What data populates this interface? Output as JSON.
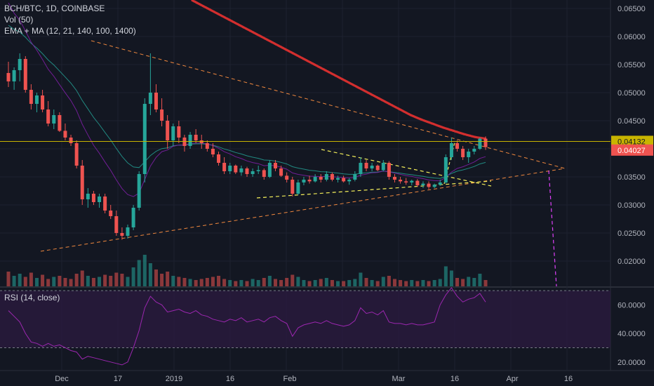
{
  "legend": {
    "symbol": "BCH/BTC, 1D, COINBASE",
    "volume": "Vol (50)",
    "ma": "EMA + MA (12, 21, 140, 100, 1400)",
    "rsi": "RSI (14, close)"
  },
  "colors": {
    "background": "#131722",
    "grid": "#1e2230",
    "up": "#26a69a",
    "down": "#ef5350",
    "ma_red": "#d32f2f",
    "ema_teal": "#26a69a",
    "ema_purple": "#7b1fa2",
    "trend_orange": "#f0883e",
    "triangle_yellow": "#f5f05a",
    "projection_pink": "#e040fb",
    "rsi_line": "#9c27b0",
    "rsi_band": "#2a1a3e",
    "price_line": "#c8b400"
  },
  "price_axis": {
    "ticks": [
      "0.06500",
      "0.06000",
      "0.05500",
      "0.05000",
      "0.04500",
      "0.03500",
      "0.03000",
      "0.02500",
      "0.02000"
    ],
    "current_price": "0.04132",
    "last_close": "0.04027"
  },
  "rsi_axis": {
    "ticks": [
      "60.0000",
      "40.0000",
      "20.0000"
    ]
  },
  "time_axis": {
    "labels": [
      "Dec",
      "17",
      "2019",
      "16",
      "Feb",
      "Mar",
      "16",
      "Apr",
      "16"
    ]
  },
  "chart_data": {
    "type": "candlestick",
    "title": "BCH/BTC, 1D, COINBASE",
    "ylim": [
      0.0155,
      0.0665
    ],
    "rsi_ylim": [
      14,
      72
    ],
    "rsi_levels": [
      70,
      30
    ],
    "ohlc": [
      [
        0.0535,
        0.0555,
        0.051,
        0.052
      ],
      [
        0.052,
        0.0545,
        0.0505,
        0.054
      ],
      [
        0.054,
        0.057,
        0.052,
        0.056
      ],
      [
        0.056,
        0.0565,
        0.05,
        0.0505
      ],
      [
        0.0505,
        0.0515,
        0.047,
        0.048
      ],
      [
        0.048,
        0.05,
        0.0465,
        0.0495
      ],
      [
        0.0495,
        0.0505,
        0.0465,
        0.047
      ],
      [
        0.047,
        0.0485,
        0.044,
        0.0445
      ],
      [
        0.0445,
        0.047,
        0.0435,
        0.046
      ],
      [
        0.046,
        0.0465,
        0.043,
        0.0432
      ],
      [
        0.0432,
        0.0445,
        0.0415,
        0.042
      ],
      [
        0.042,
        0.0425,
        0.0405,
        0.041
      ],
      [
        0.041,
        0.0415,
        0.0365,
        0.037
      ],
      [
        0.037,
        0.038,
        0.03,
        0.031
      ],
      [
        0.031,
        0.033,
        0.0295,
        0.032
      ],
      [
        0.032,
        0.0325,
        0.03,
        0.0305
      ],
      [
        0.0305,
        0.032,
        0.0295,
        0.0315
      ],
      [
        0.0315,
        0.032,
        0.0285,
        0.029
      ],
      [
        0.029,
        0.03,
        0.0275,
        0.028
      ],
      [
        0.028,
        0.029,
        0.0245,
        0.025
      ],
      [
        0.025,
        0.026,
        0.0238,
        0.0245
      ],
      [
        0.0245,
        0.0265,
        0.024,
        0.026
      ],
      [
        0.026,
        0.03,
        0.0255,
        0.0295
      ],
      [
        0.0295,
        0.036,
        0.029,
        0.0355
      ],
      [
        0.0355,
        0.049,
        0.034,
        0.048
      ],
      [
        0.048,
        0.057,
        0.046,
        0.05
      ],
      [
        0.05,
        0.0515,
        0.0465,
        0.047
      ],
      [
        0.047,
        0.049,
        0.044,
        0.045
      ],
      [
        0.045,
        0.046,
        0.04,
        0.0415
      ],
      [
        0.0415,
        0.0445,
        0.0405,
        0.044
      ],
      [
        0.044,
        0.045,
        0.041,
        0.042
      ],
      [
        0.042,
        0.0425,
        0.0395,
        0.0405
      ],
      [
        0.0405,
        0.043,
        0.04,
        0.0425
      ],
      [
        0.0425,
        0.0435,
        0.041,
        0.0415
      ],
      [
        0.0415,
        0.0425,
        0.04,
        0.041
      ],
      [
        0.041,
        0.0415,
        0.0395,
        0.04
      ],
      [
        0.04,
        0.041,
        0.0385,
        0.039
      ],
      [
        0.039,
        0.0395,
        0.037,
        0.0375
      ],
      [
        0.0375,
        0.0385,
        0.0355,
        0.036
      ],
      [
        0.036,
        0.0375,
        0.0355,
        0.037
      ],
      [
        0.037,
        0.0372,
        0.0355,
        0.0358
      ],
      [
        0.0358,
        0.037,
        0.0352,
        0.0365
      ],
      [
        0.0365,
        0.0368,
        0.035,
        0.0355
      ],
      [
        0.0355,
        0.0365,
        0.035,
        0.036
      ],
      [
        0.036,
        0.037,
        0.0355,
        0.0362
      ],
      [
        0.0362,
        0.0365,
        0.0345,
        0.035
      ],
      [
        0.035,
        0.038,
        0.0348,
        0.0375
      ],
      [
        0.0375,
        0.038,
        0.036,
        0.0365
      ],
      [
        0.0365,
        0.037,
        0.035,
        0.0352
      ],
      [
        0.0352,
        0.0358,
        0.034,
        0.0345
      ],
      [
        0.0345,
        0.035,
        0.0315,
        0.032
      ],
      [
        0.032,
        0.0345,
        0.0318,
        0.034
      ],
      [
        0.034,
        0.035,
        0.0335,
        0.0345
      ],
      [
        0.0345,
        0.0352,
        0.0338,
        0.0342
      ],
      [
        0.0342,
        0.0355,
        0.034,
        0.035
      ],
      [
        0.035,
        0.0355,
        0.034,
        0.0345
      ],
      [
        0.0345,
        0.036,
        0.0342,
        0.0355
      ],
      [
        0.0355,
        0.0358,
        0.0342,
        0.0345
      ],
      [
        0.0345,
        0.0352,
        0.034,
        0.0348
      ],
      [
        0.0348,
        0.0352,
        0.034,
        0.0342
      ],
      [
        0.0342,
        0.0348,
        0.0336,
        0.0345
      ],
      [
        0.0345,
        0.036,
        0.0342,
        0.0355
      ],
      [
        0.0355,
        0.0385,
        0.035,
        0.0375
      ],
      [
        0.0375,
        0.038,
        0.036,
        0.0365
      ],
      [
        0.0365,
        0.0375,
        0.036,
        0.037
      ],
      [
        0.037,
        0.0372,
        0.036,
        0.0362
      ],
      [
        0.0362,
        0.038,
        0.036,
        0.0375
      ],
      [
        0.0375,
        0.0378,
        0.0345,
        0.035
      ],
      [
        0.035,
        0.0355,
        0.034,
        0.0345
      ],
      [
        0.0345,
        0.035,
        0.0338,
        0.0342
      ],
      [
        0.0342,
        0.0348,
        0.0336,
        0.034
      ],
      [
        0.034,
        0.0345,
        0.0335,
        0.0343
      ],
      [
        0.0343,
        0.0346,
        0.0332,
        0.0335
      ],
      [
        0.0335,
        0.0342,
        0.033,
        0.0338
      ],
      [
        0.0338,
        0.0342,
        0.0328,
        0.0332
      ],
      [
        0.0332,
        0.0338,
        0.033,
        0.0336
      ],
      [
        0.0336,
        0.0345,
        0.0334,
        0.034
      ],
      [
        0.034,
        0.039,
        0.0338,
        0.0385
      ],
      [
        0.0385,
        0.042,
        0.038,
        0.041
      ],
      [
        0.041,
        0.0415,
        0.0395,
        0.04
      ],
      [
        0.04,
        0.0405,
        0.038,
        0.0385
      ],
      [
        0.0385,
        0.04,
        0.0375,
        0.0395
      ],
      [
        0.0395,
        0.0405,
        0.039,
        0.04
      ],
      [
        0.04,
        0.042,
        0.0398,
        0.0418
      ],
      [
        0.0418,
        0.0422,
        0.0398,
        0.0403
      ]
    ],
    "volume": [
      1.4,
      1.0,
      1.2,
      0.9,
      1.3,
      0.8,
      1.1,
      0.7,
      0.9,
      1.0,
      0.8,
      0.7,
      1.2,
      1.5,
      1.0,
      0.8,
      0.9,
      1.1,
      1.0,
      1.3,
      1.2,
      0.9,
      1.8,
      2.5,
      3.0,
      2.2,
      1.6,
      1.2,
      1.4,
      1.0,
      0.9,
      0.8,
      0.7,
      0.6,
      0.7,
      0.8,
      0.9,
      1.0,
      0.7,
      0.6,
      0.5,
      0.6,
      0.5,
      0.7,
      0.6,
      0.8,
      1.0,
      0.7,
      0.6,
      0.8,
      1.1,
      0.9,
      0.6,
      0.5,
      0.6,
      0.7,
      0.8,
      0.6,
      0.5,
      0.5,
      0.6,
      0.7,
      1.3,
      0.8,
      0.6,
      0.5,
      0.9,
      1.0,
      0.7,
      0.6,
      0.5,
      0.6,
      0.5,
      0.6,
      0.5,
      0.6,
      0.7,
      1.9,
      1.5,
      0.8,
      0.7,
      0.9,
      0.8,
      1.2,
      0.6
    ],
    "ma_red": [
      0.069,
      0.068,
      0.067,
      0.066,
      0.065,
      0.064,
      0.063,
      0.062,
      0.061,
      0.06,
      0.059,
      0.058,
      0.057,
      0.056,
      0.055,
      0.054,
      0.053,
      0.052,
      0.051,
      0.05,
      0.049,
      0.048,
      0.047,
      0.046,
      0.0452,
      0.0445,
      0.0438,
      0.0432,
      0.0426,
      0.0421,
      0.0418
    ],
    "rsi": [
      56,
      52,
      48,
      40,
      34,
      33,
      31,
      33,
      31,
      32,
      30,
      28,
      27,
      22,
      24,
      23,
      22,
      21,
      20,
      19,
      18,
      20,
      30,
      42,
      58,
      66,
      62,
      60,
      55,
      56,
      57,
      55,
      54,
      56,
      53,
      52,
      50,
      49,
      48,
      50,
      49,
      51,
      48,
      49,
      50,
      48,
      51,
      52,
      49,
      47,
      38,
      44,
      46,
      47,
      48,
      47,
      49,
      47,
      46,
      45,
      46,
      49,
      58,
      54,
      55,
      53,
      56,
      48,
      47,
      47,
      46,
      47,
      46,
      46,
      47,
      48,
      60,
      67,
      72,
      66,
      62,
      64,
      65,
      68,
      62
    ]
  }
}
